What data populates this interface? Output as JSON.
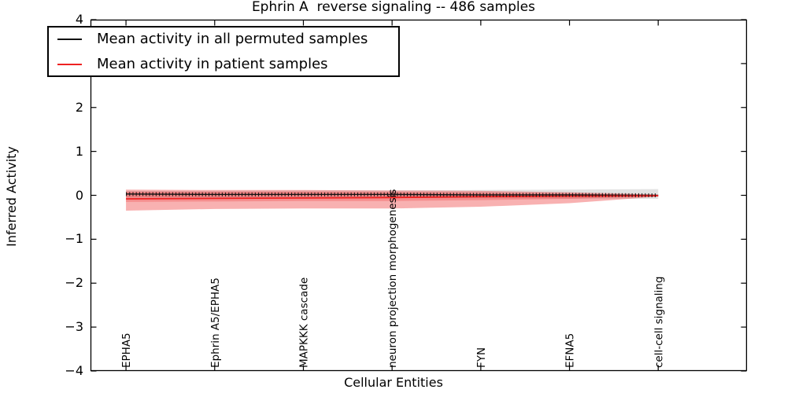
{
  "figure": {
    "title": "Ephrin A  reverse signaling -- 486 samples",
    "xlabel": "Cellular Entities",
    "ylabel": "Inferred Activity"
  },
  "legend": {
    "position": "upper left",
    "items": [
      {
        "label": "Mean activity in all permuted samples",
        "color": "#111111"
      },
      {
        "label": "Mean activity in patient samples",
        "color": "#ee2222"
      }
    ]
  },
  "chart_data": {
    "type": "line",
    "title": "Ephrin A  reverse signaling -- 486 samples",
    "xlabel": "Cellular Entities",
    "ylabel": "Inferred Activity",
    "categories": [
      "EPHA5",
      "Ephrin A5/EPHA5",
      "MAPKKK cascade",
      "neuron projection morphogenesis",
      "FYN",
      "EFNA5",
      "cell-cell signaling"
    ],
    "x": [
      0,
      1,
      2,
      3,
      4,
      5,
      6
    ],
    "xlim": [
      -0.4,
      7.0
    ],
    "ylim": [
      -4,
      4
    ],
    "yticks": [
      4,
      3,
      2,
      1,
      0,
      -1,
      -2,
      -3,
      -4
    ],
    "grid": false,
    "legend_position": "upper left",
    "series": [
      {
        "name": "Mean activity in all permuted samples",
        "color": "#111111",
        "marker": "plus",
        "values": [
          0.03,
          0.02,
          0.02,
          0.02,
          0.01,
          0.01,
          0.0
        ]
      },
      {
        "name": "Mean activity in patient samples",
        "color": "#ee2222",
        "marker": "none",
        "values": [
          -0.08,
          -0.07,
          -0.06,
          -0.05,
          -0.03,
          -0.02,
          -0.01
        ]
      }
    ],
    "bands": [
      {
        "name": "permuted-std-band",
        "color": "#e2e2e2",
        "opacity": 1,
        "upper": [
          0.1,
          0.1,
          0.11,
          0.11,
          0.12,
          0.13,
          0.14
        ],
        "lower": [
          -0.05,
          -0.05,
          -0.06,
          -0.06,
          -0.07,
          -0.08,
          -0.08
        ]
      },
      {
        "name": "patient-outer-band",
        "color": "#ee4444",
        "opacity": 0.42,
        "upper": [
          0.13,
          0.12,
          0.12,
          0.11,
          0.1,
          0.07,
          0.02
        ],
        "lower": [
          -0.35,
          -0.31,
          -0.3,
          -0.3,
          -0.26,
          -0.18,
          -0.03
        ]
      },
      {
        "name": "patient-inner-band",
        "color": "#ee4444",
        "opacity": 0.32,
        "upper": [
          0.08,
          0.08,
          0.08,
          0.07,
          0.06,
          0.04,
          0.01
        ],
        "lower": [
          -0.15,
          -0.14,
          -0.13,
          -0.13,
          -0.11,
          -0.08,
          -0.02
        ]
      }
    ]
  }
}
